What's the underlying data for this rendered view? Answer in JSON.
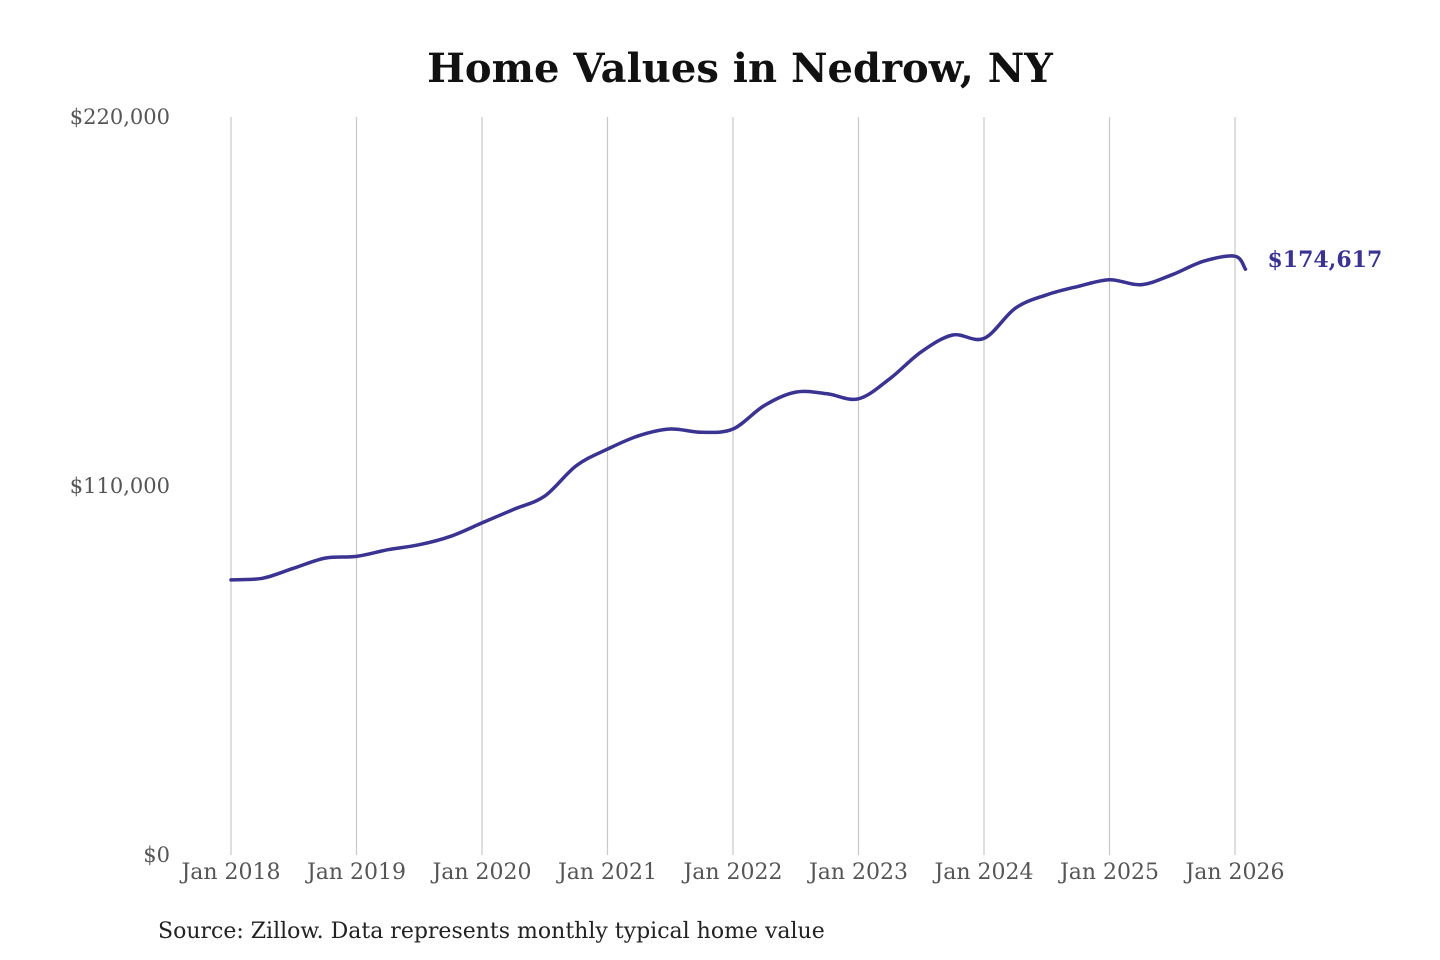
{
  "chart_data": {
    "type": "line",
    "title": "Home Values in Nedrow, NY",
    "source_note": "Source: Zillow. Data represents monthly typical home value",
    "ylim": [
      0,
      220000
    ],
    "y_ticks": [
      {
        "value": 0,
        "label": "$0"
      },
      {
        "value": 110000,
        "label": "$110,000"
      },
      {
        "value": 220000,
        "label": "$220,000"
      }
    ],
    "x_ticks": [
      {
        "value": "2018-01",
        "label": "Jan 2018"
      },
      {
        "value": "2019-01",
        "label": "Jan 2019"
      },
      {
        "value": "2020-01",
        "label": "Jan 2020"
      },
      {
        "value": "2021-01",
        "label": "Jan 2021"
      },
      {
        "value": "2022-01",
        "label": "Jan 2022"
      },
      {
        "value": "2023-01",
        "label": "Jan 2023"
      },
      {
        "value": "2024-01",
        "label": "Jan 2024"
      },
      {
        "value": "2025-01",
        "label": "Jan 2025"
      },
      {
        "value": "2026-01",
        "label": "Jan 2026"
      }
    ],
    "grid": "vertical",
    "line_color": "#3a3391",
    "end_label": "$174,617",
    "series": [
      {
        "x": [
          "2018-01",
          "2018-04",
          "2018-07",
          "2018-10",
          "2019-01",
          "2019-04",
          "2019-07",
          "2019-10",
          "2020-01",
          "2020-04",
          "2020-07",
          "2020-10",
          "2021-01",
          "2021-04",
          "2021-07",
          "2021-10",
          "2022-01",
          "2022-04",
          "2022-07",
          "2022-10",
          "2023-01",
          "2023-04",
          "2023-07",
          "2023-10",
          "2024-01",
          "2024-04",
          "2024-07",
          "2024-10",
          "2025-01",
          "2025-04",
          "2025-07",
          "2025-10",
          "2026-01",
          "2026-02"
        ],
        "y": [
          82000,
          82500,
          85500,
          88500,
          89000,
          91000,
          92500,
          95000,
          99000,
          103000,
          107000,
          116000,
          121000,
          125000,
          127000,
          126000,
          127000,
          134000,
          138000,
          137500,
          136000,
          142000,
          150000,
          155000,
          154000,
          163000,
          167000,
          169500,
          171500,
          170000,
          173000,
          177000,
          178500,
          174617
        ]
      }
    ]
  }
}
